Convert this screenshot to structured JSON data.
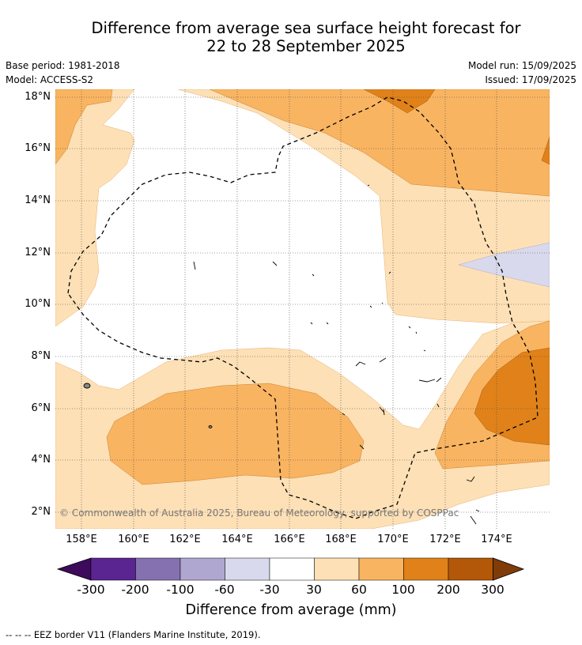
{
  "title": {
    "line1": "Difference from average sea surface height forecast for",
    "line2": "22 to 28 September 2025"
  },
  "meta": {
    "base_period": "Base period: 1981-2018",
    "model": "Model: ACCESS-S2",
    "model_run": "Model run: 15/09/2025",
    "issued": "Issued: 17/09/2025"
  },
  "map": {
    "lon_range": [
      157,
      176
    ],
    "lat_range": [
      1.5,
      18.3
    ],
    "lat_labels": [
      "18°N",
      "16°N",
      "14°N",
      "12°N",
      "10°N",
      "8°N",
      "6°N",
      "4°N",
      "2°N"
    ],
    "lon_labels": [
      "158°E",
      "160°E",
      "162°E",
      "164°E",
      "166°E",
      "168°E",
      "170°E",
      "172°E",
      "174°E"
    ],
    "copyright": "© Commonwealth of Australia 2025, Bureau of Meteorology, supported by COSPPac"
  },
  "colorbar": {
    "ticks": [
      "-300",
      "-200",
      "-100",
      "-60",
      "-30",
      "30",
      "60",
      "100",
      "200",
      "300"
    ],
    "colors": [
      "#3d0a5c",
      "#5a2590",
      "#8571b0",
      "#b0a7d1",
      "#d8d9ec",
      "#ffffff",
      "#fde0b6",
      "#f9b461",
      "#e08219",
      "#b35808",
      "#7f3b08"
    ],
    "label": "Difference from average (mm)"
  },
  "footer": "--  --  -- EEZ border V11 (Flanders Marine Institute, 2019)."
}
